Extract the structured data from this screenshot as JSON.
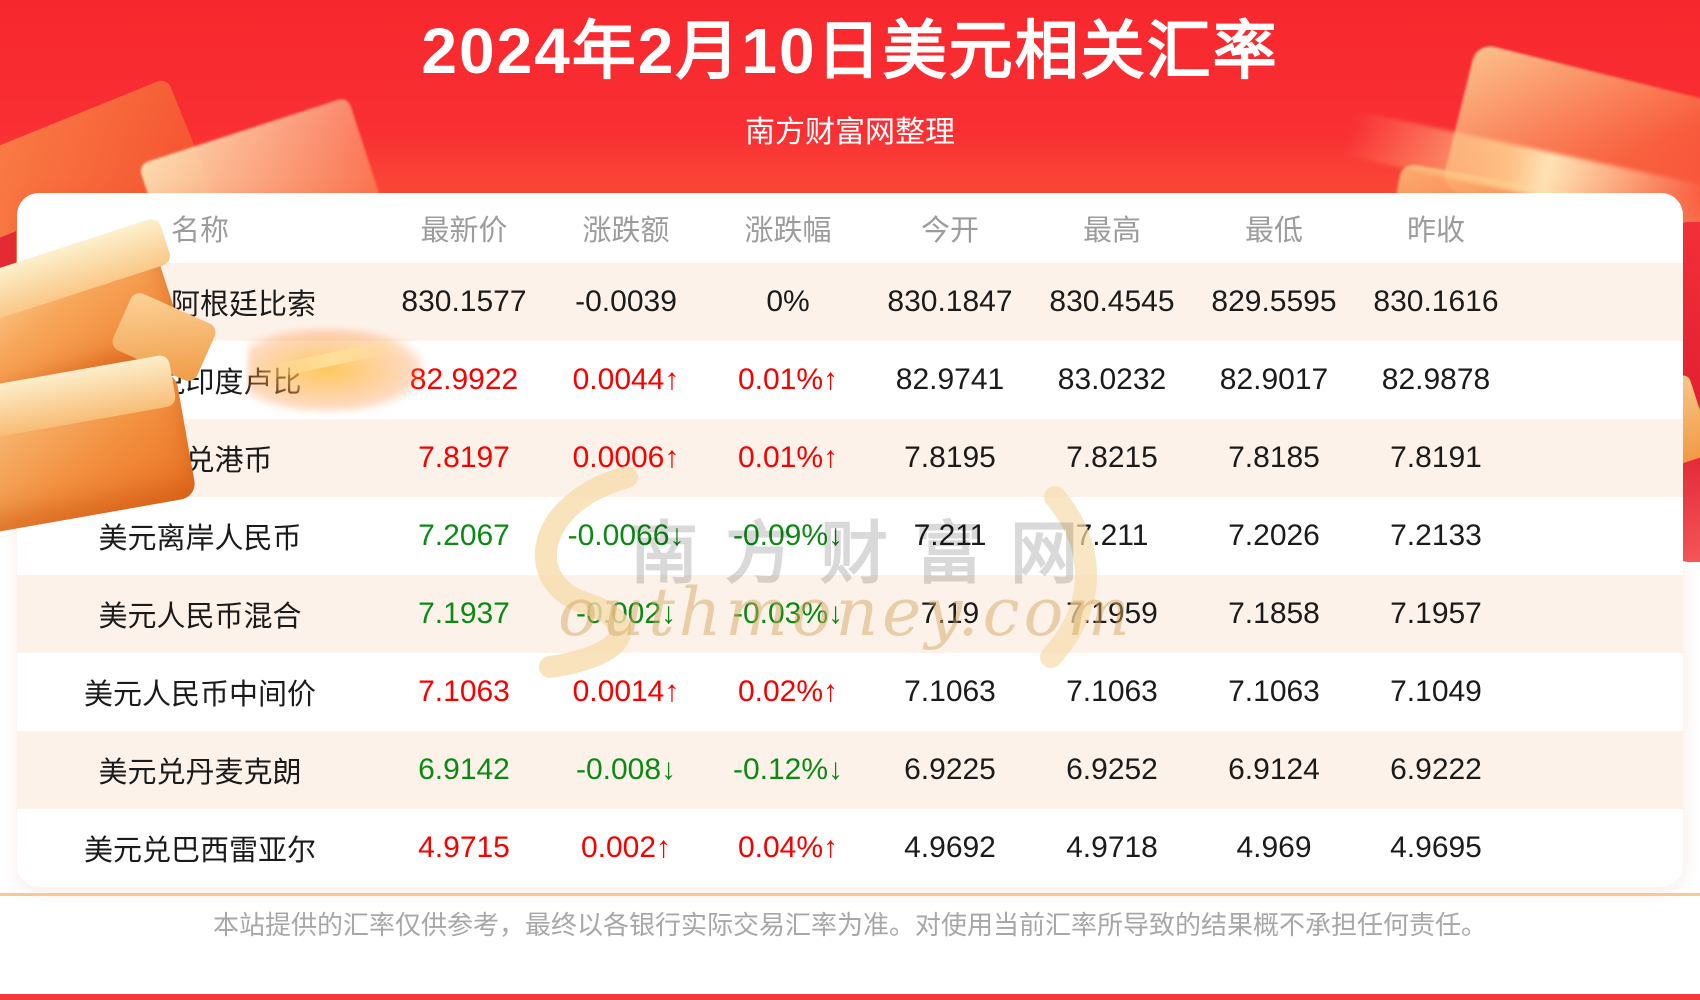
{
  "header": {
    "title": "2024年2月10日美元相关汇率",
    "subtitle": "南方财富网整理"
  },
  "chart_data": {
    "type": "table",
    "title": "2024年2月10日美元相关汇率",
    "columns": [
      "名称",
      "最新价",
      "涨跌额",
      "涨跌幅",
      "今开",
      "最高",
      "最低",
      "昨收"
    ],
    "rows": [
      {
        "cells": [
          "美元兑阿根廷比索",
          "830.1577",
          "-0.0039",
          "0%",
          "830.1847",
          "830.4545",
          "829.5595",
          "830.1616"
        ],
        "trend": "flat"
      },
      {
        "cells": [
          "美元兑印度卢比",
          "82.9922",
          "0.0044↑",
          "0.01%↑",
          "82.9741",
          "83.0232",
          "82.9017",
          "82.9878"
        ],
        "trend": "up"
      },
      {
        "cells": [
          "美元兑港币",
          "7.8197",
          "0.0006↑",
          "0.01%↑",
          "7.8195",
          "7.8215",
          "7.8185",
          "7.8191"
        ],
        "trend": "up"
      },
      {
        "cells": [
          "美元离岸人民币",
          "7.2067",
          "-0.0066↓",
          "-0.09%↓",
          "7.211",
          "7.211",
          "7.2026",
          "7.2133"
        ],
        "trend": "down"
      },
      {
        "cells": [
          "美元人民币混合",
          "7.1937",
          "-0.002↓",
          "-0.03%↓",
          "7.19",
          "7.1959",
          "7.1858",
          "7.1957"
        ],
        "trend": "down"
      },
      {
        "cells": [
          "美元人民币中间价",
          "7.1063",
          "0.0014↑",
          "0.02%↑",
          "7.1063",
          "7.1063",
          "7.1063",
          "7.1049"
        ],
        "trend": "up"
      },
      {
        "cells": [
          "美元兑丹麦克朗",
          "6.9142",
          "-0.008↓",
          "-0.12%↓",
          "6.9225",
          "6.9252",
          "6.9124",
          "6.9222"
        ],
        "trend": "down"
      },
      {
        "cells": [
          "美元兑巴西雷亚尔",
          "4.9715",
          "0.002↑",
          "0.04%↑",
          "4.9692",
          "4.9718",
          "4.969",
          "4.9695"
        ],
        "trend": "up"
      }
    ],
    "legend_position": "none",
    "grid": false
  },
  "colors": {
    "up": "#f80000",
    "down": "#0b8a13",
    "flat": "#1b1b1b",
    "banner_red": "#f8282d",
    "stripe_cream": "#fdf2ea"
  },
  "watermark": {
    "cn": "南方财富网",
    "en": "outhmoney.com"
  },
  "footer": {
    "disclaimer": "本站提供的汇率仅供参考，最终以各银行实际交易汇率为准。对使用当前汇率所导致的结果概不承担任何责任。"
  }
}
